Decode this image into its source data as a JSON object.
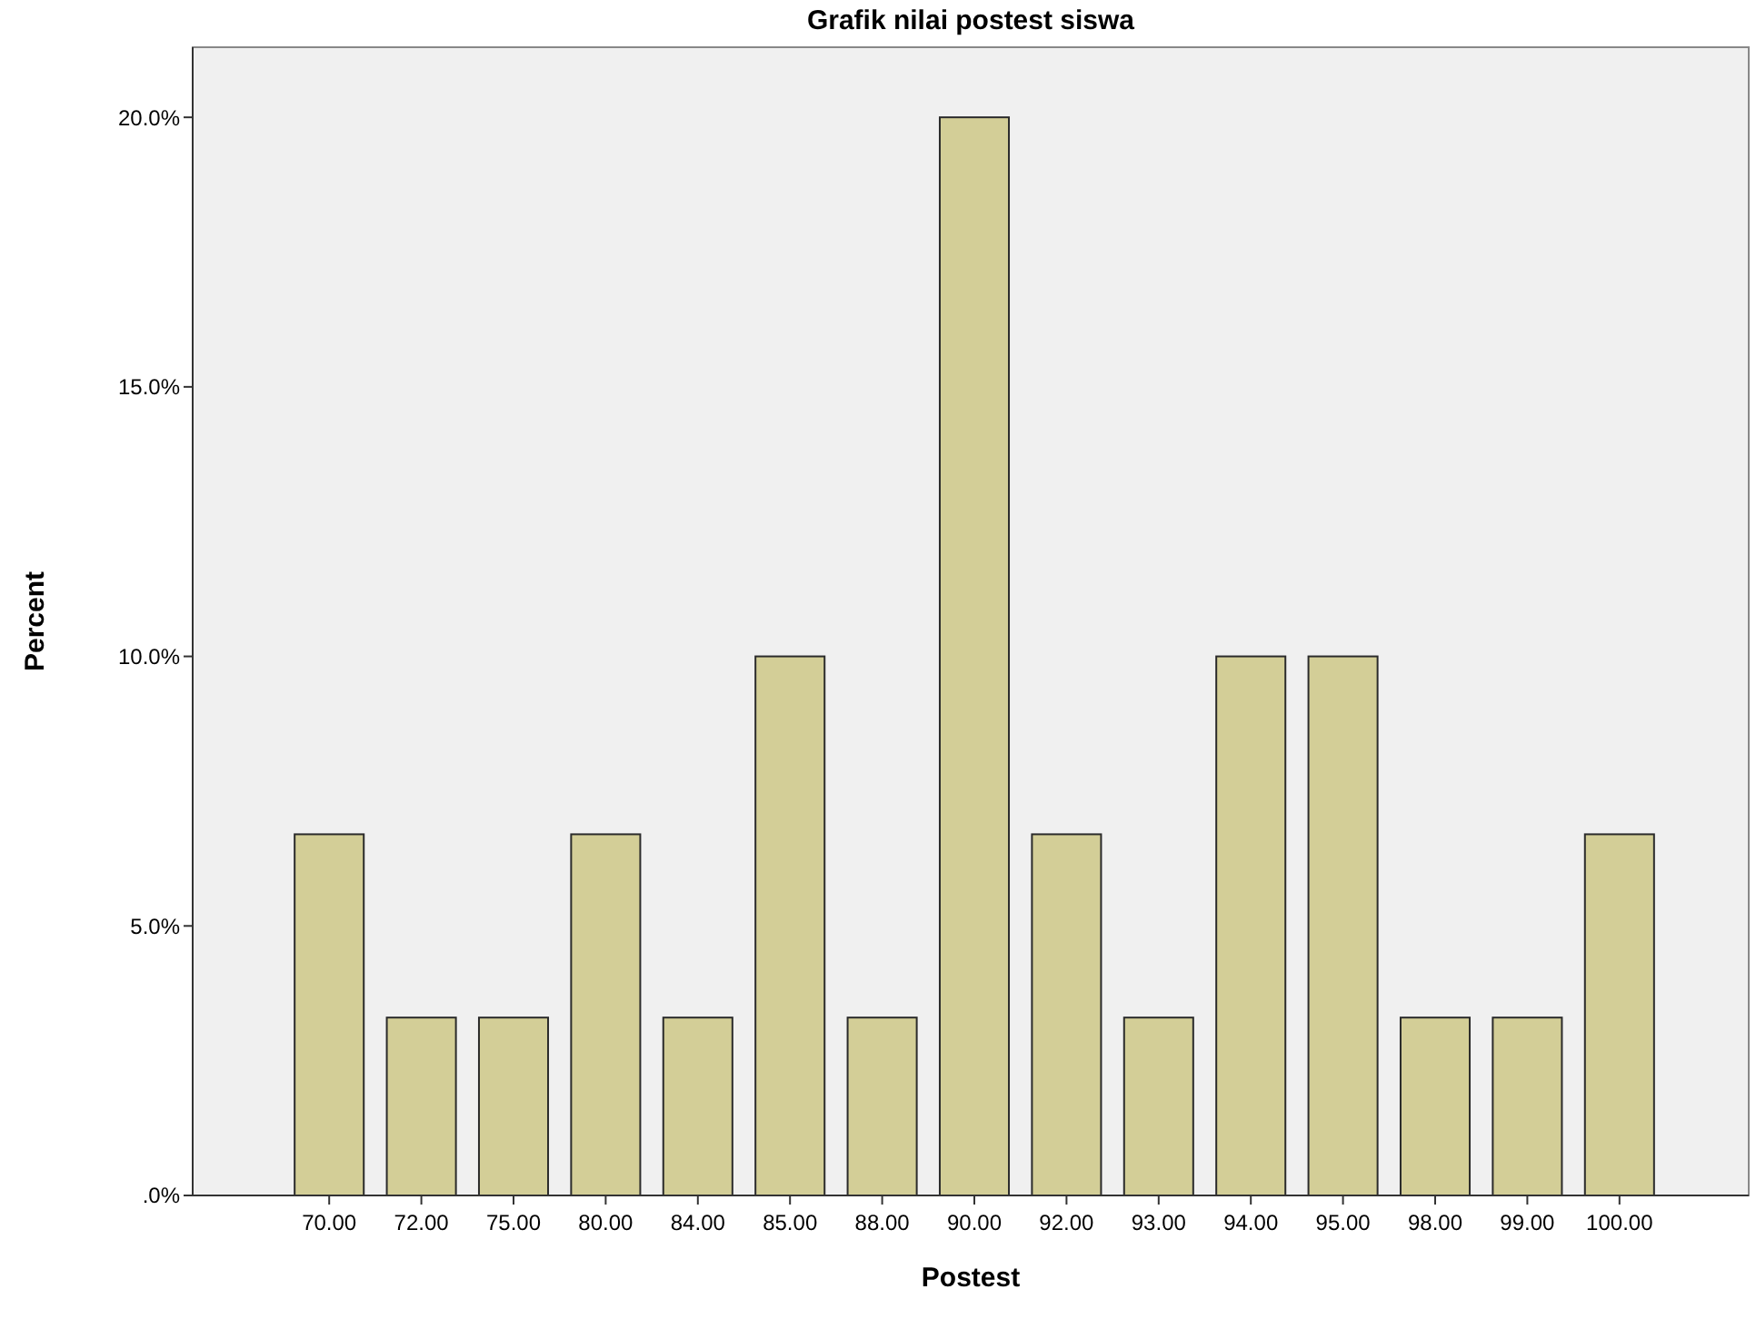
{
  "chart_data": {
    "type": "bar",
    "title": "Grafik nilai postest siswa",
    "xlabel": "Postest",
    "ylabel": "Percent",
    "categories": [
      "70.00",
      "72.00",
      "75.00",
      "80.00",
      "84.00",
      "85.00",
      "88.00",
      "90.00",
      "92.00",
      "93.00",
      "94.00",
      "95.00",
      "98.00",
      "99.00",
      "100.00"
    ],
    "values": [
      6.7,
      3.3,
      3.3,
      6.7,
      3.3,
      10,
      3.3,
      20,
      6.7,
      3.3,
      10,
      10,
      3.3,
      3.3,
      6.7
    ],
    "color": "#d3ce97",
    "ylim": [
      0,
      21.3
    ],
    "yticks": [
      {
        "value": 0,
        "label": ".0%"
      },
      {
        "value": 5,
        "label": "5.0%"
      },
      {
        "value": 10,
        "label": "10.0%"
      },
      {
        "value": 15,
        "label": "15.0%"
      },
      {
        "value": 20,
        "label": "20.0%"
      }
    ],
    "grid": false
  }
}
